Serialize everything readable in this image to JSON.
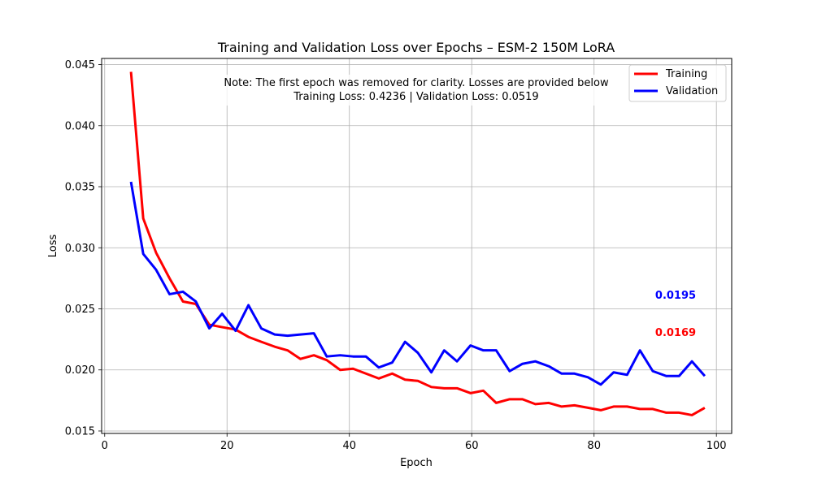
{
  "chart_data": {
    "type": "line",
    "title": "Training and Validation Loss over Epochs – ESM-2 150M LoRA",
    "xlabel": "Epoch",
    "ylabel": "Loss",
    "xlim": [
      -0.5,
      102.5
    ],
    "ylim": [
      0.0148,
      0.0455
    ],
    "xticks": [
      0,
      20,
      40,
      60,
      80,
      100
    ],
    "yticks": [
      0.015,
      0.02,
      0.025,
      0.03,
      0.035,
      0.04,
      0.045
    ],
    "ytick_labels": [
      "0.015",
      "0.020",
      "0.025",
      "0.030",
      "0.035",
      "0.040",
      "0.045"
    ],
    "grid": true,
    "legend_position": "top-right",
    "note_lines": [
      "Note: The first epoch was removed for clarity. Losses are provided below",
      "Training Loss: 0.4236 | Validation Loss: 0.0519"
    ],
    "x": [
      4.3,
      6.3,
      8.4,
      10.6,
      12.8,
      14.9,
      17.1,
      19.2,
      21.4,
      23.5,
      25.6,
      27.8,
      29.9,
      32.0,
      34.2,
      36.3,
      38.5,
      40.6,
      42.7,
      44.8,
      47.0,
      49.1,
      51.2,
      53.4,
      55.5,
      57.6,
      59.8,
      61.9,
      64.0,
      66.2,
      68.3,
      70.4,
      72.6,
      74.7,
      76.8,
      79.0,
      81.1,
      83.2,
      85.4,
      87.5,
      89.6,
      91.8,
      93.9,
      96.0,
      98.1
    ],
    "series": [
      {
        "name": "Training",
        "color": "#ff0000",
        "values": [
          0.0444,
          0.0324,
          0.0296,
          0.0275,
          0.0256,
          0.0254,
          0.0237,
          0.0235,
          0.0233,
          0.0227,
          0.0223,
          0.0219,
          0.0216,
          0.0209,
          0.0212,
          0.0208,
          0.02,
          0.0201,
          0.0197,
          0.0193,
          0.0197,
          0.0192,
          0.0191,
          0.0186,
          0.0185,
          0.0185,
          0.0181,
          0.0183,
          0.0173,
          0.0176,
          0.0176,
          0.0172,
          0.0173,
          0.017,
          0.0171,
          0.0169,
          0.0167,
          0.017,
          0.017,
          0.0168,
          0.0168,
          0.0165,
          0.0165,
          0.0163,
          0.0169
        ],
        "final_label": "0.0169"
      },
      {
        "name": "Validation",
        "color": "#0000ff",
        "values": [
          0.0354,
          0.0295,
          0.0282,
          0.0262,
          0.0264,
          0.0256,
          0.0234,
          0.0246,
          0.0232,
          0.0253,
          0.0234,
          0.0229,
          0.0228,
          0.0229,
          0.023,
          0.0211,
          0.0212,
          0.0211,
          0.0211,
          0.0202,
          0.0206,
          0.0223,
          0.0214,
          0.0198,
          0.0216,
          0.0207,
          0.022,
          0.0216,
          0.0216,
          0.0199,
          0.0205,
          0.0207,
          0.0203,
          0.0197,
          0.0197,
          0.0194,
          0.0188,
          0.0198,
          0.0196,
          0.0216,
          0.0199,
          0.0195,
          0.0195,
          0.0207,
          0.0195
        ],
        "final_label": "0.0195"
      }
    ]
  }
}
